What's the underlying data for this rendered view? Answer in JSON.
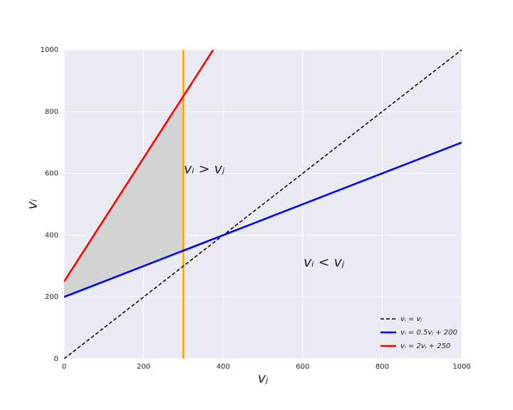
{
  "chart_data": {
    "type": "line",
    "xlabel": "vⱼ",
    "ylabel": "vᵢ",
    "xlim": [
      0,
      1000
    ],
    "ylim": [
      0,
      1000
    ],
    "xticks": [
      0,
      200,
      400,
      600,
      800,
      1000
    ],
    "yticks": [
      0,
      200,
      400,
      600,
      800,
      1000
    ],
    "grid": true,
    "legend": "lower right",
    "series": [
      {
        "name": "vᵢ = vⱼ",
        "color": "#000000",
        "linestyle": "dashed",
        "x": [
          0,
          1000
        ],
        "values": [
          0,
          1000
        ]
      },
      {
        "name": "vᵢ = 0.5vⱼ + 200",
        "color": "#0000ff",
        "linestyle": "solid",
        "x": [
          0,
          1000
        ],
        "values": [
          200,
          700
        ]
      },
      {
        "name": "vᵢ = 2vⱼ + 250",
        "color": "#ff0000",
        "linestyle": "solid",
        "x": [
          0,
          375
        ],
        "values": [
          250,
          1000
        ]
      },
      {
        "color": "#ffa500",
        "linestyle": "solid",
        "x": [
          300,
          300
        ],
        "values": [
          0,
          1000
        ]
      }
    ],
    "fill_color": "#d3d3d3",
    "annotations": [
      "vᵢ > vⱼ",
      "vᵢ < vⱼ"
    ]
  }
}
